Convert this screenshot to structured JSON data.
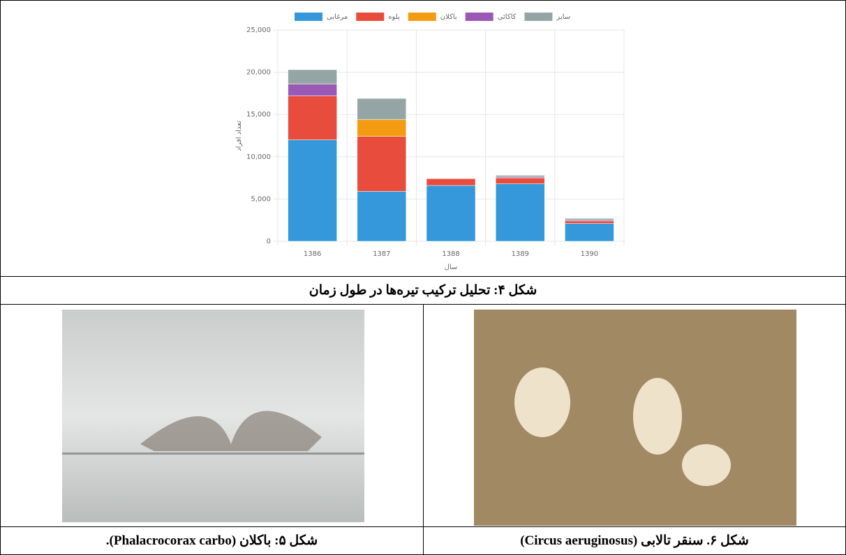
{
  "chart_data": {
    "type": "stacked-bar",
    "x_label": "سال",
    "y_label": "تعداد افراد",
    "categories": [
      "1386",
      "1387",
      "1388",
      "1389",
      "1390"
    ],
    "series": [
      {
        "name": "مرغابی",
        "color": "#3498db",
        "values": [
          12000,
          5900,
          6600,
          6800,
          2100
        ]
      },
      {
        "name": "پلوه",
        "color": "#e74c3c",
        "values": [
          5200,
          6500,
          800,
          700,
          300
        ]
      },
      {
        "name": "باکلان",
        "color": "#f39c12",
        "values": [
          0,
          2000,
          0,
          0,
          0
        ]
      },
      {
        "name": "کاکائی",
        "color": "#9b59b6",
        "values": [
          1400,
          0,
          0,
          100,
          100
        ]
      },
      {
        "name": "سایر",
        "color": "#95a5a6",
        "values": [
          1700,
          2500,
          0,
          200,
          200
        ]
      }
    ],
    "ylim": [
      0,
      25000
    ],
    "yticks": [
      0,
      {
        "value": 5000,
        "label": "5,000"
      },
      {
        "value": 10000,
        "label": "10,000"
      },
      {
        "value": 15000,
        "label": "15,000"
      },
      {
        "value": 20000,
        "label": "20,000"
      },
      {
        "value": 25000,
        "label": "25,000"
      }
    ],
    "grid": true
  },
  "captions": {
    "figure4": "شکل ۴: تحلیل ترکیب تیره‌ها در طول زمان",
    "figure5": "شکل ۵: باکلان (Phalacrocorax carbo).",
    "figure6": "شکل ۶. سنقر تالابی (Circus aeruginosus)"
  }
}
